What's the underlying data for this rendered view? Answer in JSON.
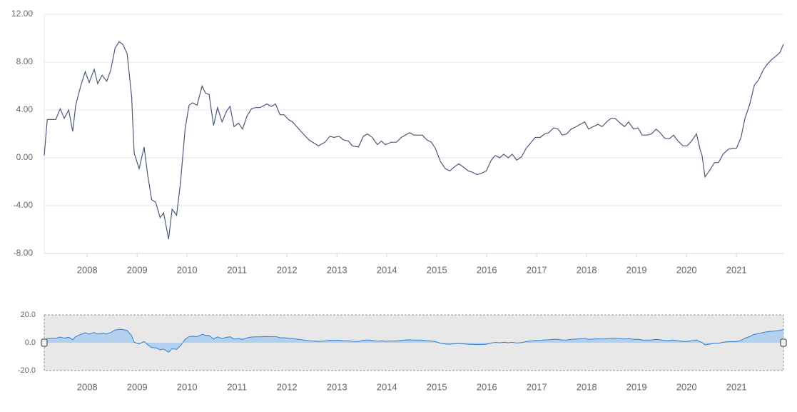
{
  "chart_data": {
    "type": "line",
    "x": [
      2007.14,
      2007.2,
      2007.37,
      2007.46,
      2007.54,
      2007.63,
      2007.71,
      2007.77,
      2007.87,
      2007.96,
      2008.04,
      2008.14,
      2008.21,
      2008.3,
      2008.39,
      2008.47,
      2008.56,
      2008.64,
      2008.71,
      2008.8,
      2008.89,
      2008.94,
      2009.04,
      2009.14,
      2009.21,
      2009.29,
      2009.37,
      2009.46,
      2009.53,
      2009.63,
      2009.7,
      2009.79,
      2009.87,
      2009.96,
      2010.04,
      2010.11,
      2010.2,
      2010.3,
      2010.37,
      2010.44,
      2010.53,
      2010.61,
      2010.7,
      2010.79,
      2010.86,
      2010.94,
      2011.03,
      2011.11,
      2011.2,
      2011.29,
      2011.37,
      2011.46,
      2011.6,
      2011.69,
      2011.77,
      2011.86,
      2011.94,
      2012.03,
      2012.11,
      2012.26,
      2012.44,
      2012.63,
      2012.76,
      2012.86,
      2012.94,
      2013.04,
      2013.13,
      2013.23,
      2013.31,
      2013.43,
      2013.53,
      2013.61,
      2013.71,
      2013.81,
      2013.89,
      2013.97,
      2014.09,
      2014.19,
      2014.29,
      2014.37,
      2014.46,
      2014.54,
      2014.63,
      2014.71,
      2014.8,
      2014.89,
      2014.97,
      2015.07,
      2015.17,
      2015.26,
      2015.34,
      2015.44,
      2015.54,
      2015.63,
      2015.71,
      2015.8,
      2015.89,
      2015.99,
      2016.09,
      2016.17,
      2016.26,
      2016.34,
      2016.43,
      2016.51,
      2016.6,
      2016.7,
      2016.79,
      2016.89,
      2016.97,
      2017.07,
      2017.16,
      2017.24,
      2017.34,
      2017.43,
      2017.51,
      2017.6,
      2017.69,
      2017.79,
      2017.87,
      2017.96,
      2018.04,
      2018.13,
      2018.23,
      2018.31,
      2018.4,
      2018.49,
      2018.57,
      2018.67,
      2018.76,
      2018.84,
      2018.94,
      2019.03,
      2019.11,
      2019.21,
      2019.3,
      2019.39,
      2019.47,
      2019.57,
      2019.66,
      2019.74,
      2019.83,
      2019.93,
      2020.01,
      2020.1,
      2020.2,
      2020.27,
      2020.31,
      2020.37,
      2020.47,
      2020.56,
      2020.64,
      2020.73,
      2020.83,
      2020.91,
      2021.0,
      2021.09,
      2021.17,
      2021.26,
      2021.36,
      2021.44,
      2021.53,
      2021.61,
      2021.7,
      2021.79,
      2021.87,
      2021.94
    ],
    "series": [
      {
        "color": "#4a5a78",
        "values": [
          0.2,
          3.2,
          3.2,
          4.1,
          3.3,
          4.0,
          2.2,
          4.4,
          6.0,
          7.2,
          6.3,
          7.4,
          6.2,
          6.9,
          6.4,
          7.3,
          9.2,
          9.7,
          9.5,
          8.7,
          5.1,
          0.4,
          -0.9,
          0.9,
          -1.4,
          -3.5,
          -3.7,
          -5.0,
          -4.6,
          -6.8,
          -4.3,
          -4.8,
          -2.0,
          2.4,
          4.4,
          4.6,
          4.4,
          6.0,
          5.4,
          5.3,
          2.7,
          4.2,
          3.0,
          3.9,
          4.3,
          2.6,
          2.9,
          2.4,
          3.5,
          4.1,
          4.2,
          4.2,
          4.5,
          4.3,
          4.5,
          3.6,
          3.6,
          3.2,
          3.0,
          2.3,
          1.5,
          1.0,
          1.3,
          1.8,
          1.7,
          1.8,
          1.5,
          1.4,
          1.0,
          0.9,
          1.8,
          2.0,
          1.7,
          1.1,
          1.4,
          1.1,
          1.3,
          1.3,
          1.7,
          1.9,
          2.1,
          1.9,
          1.9,
          1.9,
          1.5,
          1.3,
          0.8,
          -0.3,
          -0.9,
          -1.1,
          -0.8,
          -0.5,
          -0.8,
          -1.1,
          -1.2,
          -1.4,
          -1.3,
          -1.1,
          -0.2,
          0.2,
          0.0,
          0.3,
          0.0,
          0.3,
          -0.2,
          0.1,
          0.8,
          1.3,
          1.7,
          1.7,
          2.0,
          2.1,
          2.5,
          2.4,
          1.9,
          2.0,
          2.4,
          2.6,
          2.8,
          3.0,
          2.4,
          2.6,
          2.8,
          2.6,
          3.0,
          3.3,
          3.3,
          2.9,
          2.6,
          3.0,
          2.4,
          2.5,
          1.9,
          1.9,
          2.0,
          2.4,
          2.1,
          1.6,
          1.6,
          1.9,
          1.4,
          1.0,
          1.0,
          1.4,
          2.0,
          0.7,
          0.2,
          -1.6,
          -1.0,
          -0.4,
          -0.4,
          0.3,
          0.7,
          0.8,
          0.8,
          1.7,
          3.3,
          4.4,
          6.1,
          6.5,
          7.3,
          7.8,
          8.2,
          8.5,
          8.8,
          9.5
        ]
      }
    ],
    "xlim": [
      2007.14,
      2021.94
    ],
    "xticks": [
      2008,
      2009,
      2010,
      2011,
      2012,
      2013,
      2014,
      2015,
      2016,
      2017,
      2018,
      2019,
      2020,
      2021
    ],
    "ylim": [
      -8,
      12
    ],
    "yticks": [
      {
        "value": -8,
        "label": "-8.00"
      },
      {
        "value": -4,
        "label": "-4.00"
      },
      {
        "value": 0,
        "label": "0.00"
      },
      {
        "value": 4,
        "label": "4.00"
      },
      {
        "value": 8,
        "label": "8.00"
      },
      {
        "value": 12,
        "label": "12.00"
      }
    ],
    "grid": true,
    "navigator": {
      "color": "#2f7fd0",
      "fill": "#a9cdf0",
      "ylim": [
        -20,
        20
      ],
      "yticks": [
        {
          "value": -20,
          "label": "-20.0"
        },
        {
          "value": 0,
          "label": "0.0"
        },
        {
          "value": 20,
          "label": "20.0"
        }
      ]
    }
  }
}
